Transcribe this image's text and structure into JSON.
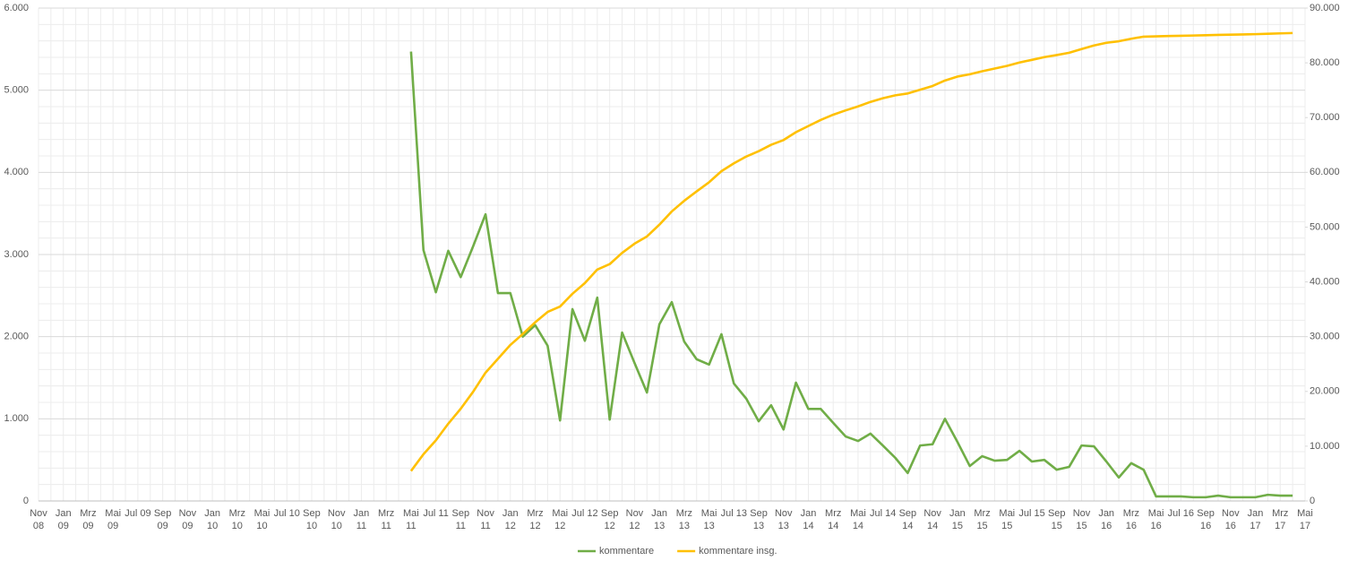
{
  "chart_data": {
    "type": "line",
    "categories": [
      "Nov 08",
      null,
      "Jan 09",
      null,
      "Mrz 09",
      null,
      "Mai 09",
      null,
      "Jul 09",
      null,
      "Sep 09",
      null,
      "Nov 09",
      null,
      "Jan 10",
      null,
      "Mrz 10",
      null,
      "Mai 10",
      null,
      "Jul 10",
      null,
      "Sep 10",
      null,
      "Nov 10",
      null,
      "Jan 11",
      null,
      "Mrz 11",
      null,
      "Mai 11",
      null,
      "Jul 11",
      null,
      "Sep 11",
      null,
      "Nov 11",
      null,
      "Jan 12",
      null,
      "Mrz 12",
      null,
      "Mai 12",
      null,
      "Jul 12",
      null,
      "Sep 12",
      null,
      "Nov 12",
      null,
      "Jan 13",
      null,
      "Mrz 13",
      null,
      "Mai 13",
      null,
      "Jul 13",
      null,
      "Sep 13",
      null,
      "Nov 13",
      null,
      "Jan 14",
      null,
      "Mrz 14",
      null,
      "Mai 14",
      null,
      "Jul 14",
      null,
      "Sep 14",
      null,
      "Nov 14",
      null,
      "Jan 15",
      null,
      "Mrz 15",
      null,
      "Mai 15",
      null,
      "Jul 15",
      null,
      "Sep 15",
      null,
      "Nov 15",
      null,
      "Jan 16",
      null,
      "Mrz 16",
      null,
      "Mai 16",
      null,
      "Jul 16",
      null,
      "Sep 16",
      null,
      "Nov 16",
      null,
      "Jan 17",
      null,
      "Mrz 17",
      null,
      "Mai 17"
    ],
    "series": [
      {
        "name": "kommentare",
        "color": "#70ad47",
        "axis": "y",
        "values": [
          null,
          null,
          null,
          null,
          null,
          null,
          null,
          null,
          null,
          null,
          null,
          null,
          null,
          null,
          null,
          null,
          null,
          null,
          null,
          null,
          null,
          null,
          null,
          null,
          null,
          null,
          null,
          null,
          null,
          null,
          5470,
          3055,
          2540,
          3045,
          2725,
          3100,
          3490,
          2530,
          2530,
          2000,
          2140,
          1890,
          980,
          2335,
          1950,
          2475,
          990,
          2050,
          1680,
          1320,
          2150,
          2420,
          1940,
          1725,
          1660,
          2030,
          1430,
          1245,
          970,
          1165,
          870,
          1440,
          1120,
          1120,
          950,
          785,
          730,
          820,
          675,
          525,
          340,
          675,
          690,
          1000,
          720,
          425,
          545,
          490,
          500,
          610,
          480,
          500,
          380,
          415,
          675,
          665,
          480,
          285,
          460,
          380,
          55,
          55,
          55,
          45,
          45,
          65,
          45,
          45,
          45,
          75,
          65,
          65,
          null
        ]
      },
      {
        "name": "kommentare insg.",
        "color": "#ffc000",
        "axis": "y2",
        "values": [
          null,
          null,
          null,
          null,
          null,
          null,
          null,
          null,
          null,
          null,
          null,
          null,
          null,
          null,
          null,
          null,
          null,
          null,
          null,
          null,
          null,
          null,
          null,
          null,
          null,
          null,
          null,
          null,
          null,
          null,
          5470,
          8525,
          11065,
          14110,
          16835,
          19935,
          23425,
          25955,
          28485,
          30485,
          32625,
          34515,
          35495,
          37830,
          39780,
          42255,
          43245,
          45295,
          46975,
          48295,
          50445,
          52865,
          54805,
          56530,
          58190,
          60220,
          61650,
          62895,
          63865,
          65030,
          65900,
          67340,
          68460,
          69580,
          70530,
          71315,
          72045,
          72865,
          73540,
          74065,
          74405,
          75080,
          75770,
          76770,
          77490,
          77915,
          78460,
          78950,
          79450,
          80060,
          80540,
          81040,
          81420,
          81835,
          82510,
          83175,
          83655,
          83940,
          84400,
          84780,
          84835,
          84890,
          84945,
          84990,
          85035,
          85100,
          85145,
          85190,
          85235,
          85310,
          85375,
          85440,
          null
        ]
      }
    ],
    "ylim": [
      0,
      6000
    ],
    "yticks": [
      0,
      {
        "value": 1000,
        "label": "1.000"
      },
      {
        "value": 2000,
        "label": "2.000"
      },
      {
        "value": 3000,
        "label": "3.000"
      },
      {
        "value": 4000,
        "label": "4.000"
      },
      {
        "value": 5000,
        "label": "5.000"
      },
      {
        "value": 6000,
        "label": "6.000"
      }
    ],
    "y2lim": [
      0,
      90000
    ],
    "y2ticks": [
      0,
      {
        "value": 10000,
        "label": "10.000"
      },
      {
        "value": 20000,
        "label": "20.000"
      },
      {
        "value": 30000,
        "label": "30.000"
      },
      {
        "value": 40000,
        "label": "40.000"
      },
      {
        "value": 50000,
        "label": "50.000"
      },
      {
        "value": 60000,
        "label": "60.000"
      },
      {
        "value": 70000,
        "label": "70.000"
      },
      {
        "value": 80000,
        "label": "80.000"
      },
      {
        "value": 90000,
        "label": "90.000"
      }
    ],
    "grid": true,
    "legend": "bottom"
  }
}
